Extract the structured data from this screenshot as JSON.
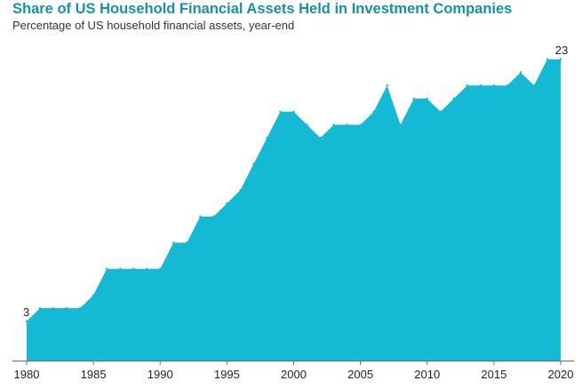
{
  "chart_data": {
    "type": "area",
    "title": "Share of US Household Financial Assets Held in Investment Companies",
    "subtitle": "Percentage of US household financial assets, year-end",
    "x": [
      1980,
      1981,
      1982,
      1983,
      1984,
      1985,
      1986,
      1987,
      1988,
      1989,
      1990,
      1991,
      1992,
      1993,
      1994,
      1995,
      1996,
      1997,
      1998,
      1999,
      2000,
      2001,
      2002,
      2003,
      2004,
      2005,
      2006,
      2007,
      2008,
      2009,
      2010,
      2011,
      2012,
      2013,
      2014,
      2015,
      2016,
      2017,
      2018,
      2019,
      2020
    ],
    "values": [
      3,
      4,
      4,
      4,
      4,
      5,
      7,
      7,
      7,
      7,
      7,
      9,
      9,
      11,
      11,
      12,
      13,
      15,
      17,
      19,
      19,
      18,
      17,
      18,
      18,
      18,
      19,
      21,
      18,
      20,
      20,
      19,
      20,
      21,
      21,
      21,
      21,
      22,
      21,
      23,
      23
    ],
    "x_ticks": [
      "1980",
      "1985",
      "1990",
      "1995",
      "2000",
      "2005",
      "2010",
      "2015",
      "2020"
    ],
    "data_labels": [
      {
        "x": 1980,
        "text": "3"
      },
      {
        "x": 2020,
        "text": "23"
      }
    ],
    "xlabel": "",
    "ylabel": "",
    "xlim": [
      1980,
      2020
    ],
    "ylim": [
      0,
      24
    ],
    "grid": false,
    "legend": "none",
    "colors": {
      "fill": "#14BAD3",
      "title": "#1592A8",
      "axis": "#6e6e6e",
      "text": "#222222"
    }
  }
}
